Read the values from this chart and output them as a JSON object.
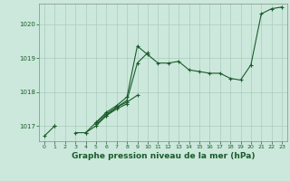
{
  "title": "Graphe pression niveau de la mer (hPa)",
  "bg_color": "#cce8dc",
  "grid_color": "#aaccbb",
  "line_color": "#1a5c2a",
  "x_ticks": [
    0,
    1,
    2,
    3,
    4,
    5,
    6,
    7,
    8,
    9,
    10,
    11,
    12,
    13,
    14,
    15,
    16,
    17,
    18,
    19,
    20,
    21,
    22,
    23
  ],
  "ylim": [
    1016.55,
    1020.6
  ],
  "yticks": [
    1017,
    1018,
    1019,
    1020
  ],
  "series": [
    [
      1016.7,
      1017.0,
      null,
      1016.8,
      1016.8,
      1017.1,
      1017.4,
      1017.6,
      1017.85,
      1019.35,
      1019.1,
      1018.85,
      1018.85,
      1018.9,
      1018.65,
      1018.6,
      1018.55,
      1018.55,
      1018.4,
      1018.35,
      1018.8,
      1020.3,
      1020.45,
      1020.5
    ],
    [
      null,
      1017.0,
      null,
      null,
      1016.8,
      1017.0,
      1017.3,
      1017.55,
      1017.75,
      1018.85,
      1019.15,
      null,
      null,
      null,
      null,
      null,
      null,
      null,
      null,
      null,
      null,
      null,
      null,
      null
    ],
    [
      null,
      null,
      null,
      null,
      null,
      1017.1,
      1017.35,
      1017.55,
      1017.7,
      1017.9,
      null,
      null,
      null,
      null,
      null,
      null,
      null,
      null,
      null,
      null,
      null,
      null,
      null,
      null
    ],
    [
      null,
      null,
      null,
      null,
      null,
      1017.05,
      1017.3,
      1017.5,
      1017.65,
      null,
      null,
      null,
      null,
      null,
      null,
      null,
      null,
      null,
      null,
      null,
      null,
      null,
      null,
      null
    ]
  ],
  "spine_color": "#888888",
  "tick_label_fontsize": 4.5,
  "ylabel_fontsize": 5.0,
  "xlabel_fontsize": 6.5,
  "linewidth": 0.8,
  "markersize": 3.0,
  "markeredgewidth": 0.8
}
